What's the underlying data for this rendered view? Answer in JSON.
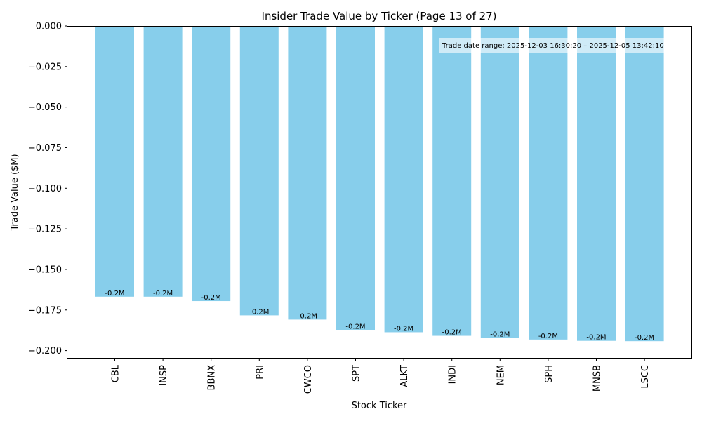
{
  "chart_data": {
    "type": "bar",
    "title": "Insider Trade Value by Ticker (Page 13 of 27)",
    "xlabel": "Stock Ticker",
    "ylabel": "Trade Value ($M)",
    "ylim": [
      -0.2045,
      0.0
    ],
    "yticks": [
      0.0,
      -0.025,
      -0.05,
      -0.075,
      -0.1,
      -0.125,
      -0.15,
      -0.175,
      -0.2
    ],
    "ytick_labels": [
      "0.000",
      "−0.025",
      "−0.050",
      "−0.075",
      "−0.100",
      "−0.125",
      "−0.150",
      "−0.175",
      "−0.200"
    ],
    "categories": [
      "CBL",
      "INSP",
      "BBNX",
      "PRI",
      "CWCO",
      "SPT",
      "ALKT",
      "INDI",
      "NEM",
      "SPH",
      "MNSB",
      "LSCC"
    ],
    "values": [
      -0.1668,
      -0.1668,
      -0.1695,
      -0.1783,
      -0.1809,
      -0.1875,
      -0.1887,
      -0.1909,
      -0.1922,
      -0.1932,
      -0.194,
      -0.1942
    ],
    "data_labels": [
      "-0.2M",
      "-0.2M",
      "-0.2M",
      "-0.2M",
      "-0.2M",
      "-0.2M",
      "-0.2M",
      "-0.2M",
      "-0.2M",
      "-0.2M",
      "-0.2M",
      "-0.2M"
    ],
    "bar_color": "#87ceeb",
    "grid": false,
    "annotation": "Trade date range: 2025-12-03 16:30:20 – 2025-12-05 13:42:10",
    "annotation_placement": "top-right"
  }
}
